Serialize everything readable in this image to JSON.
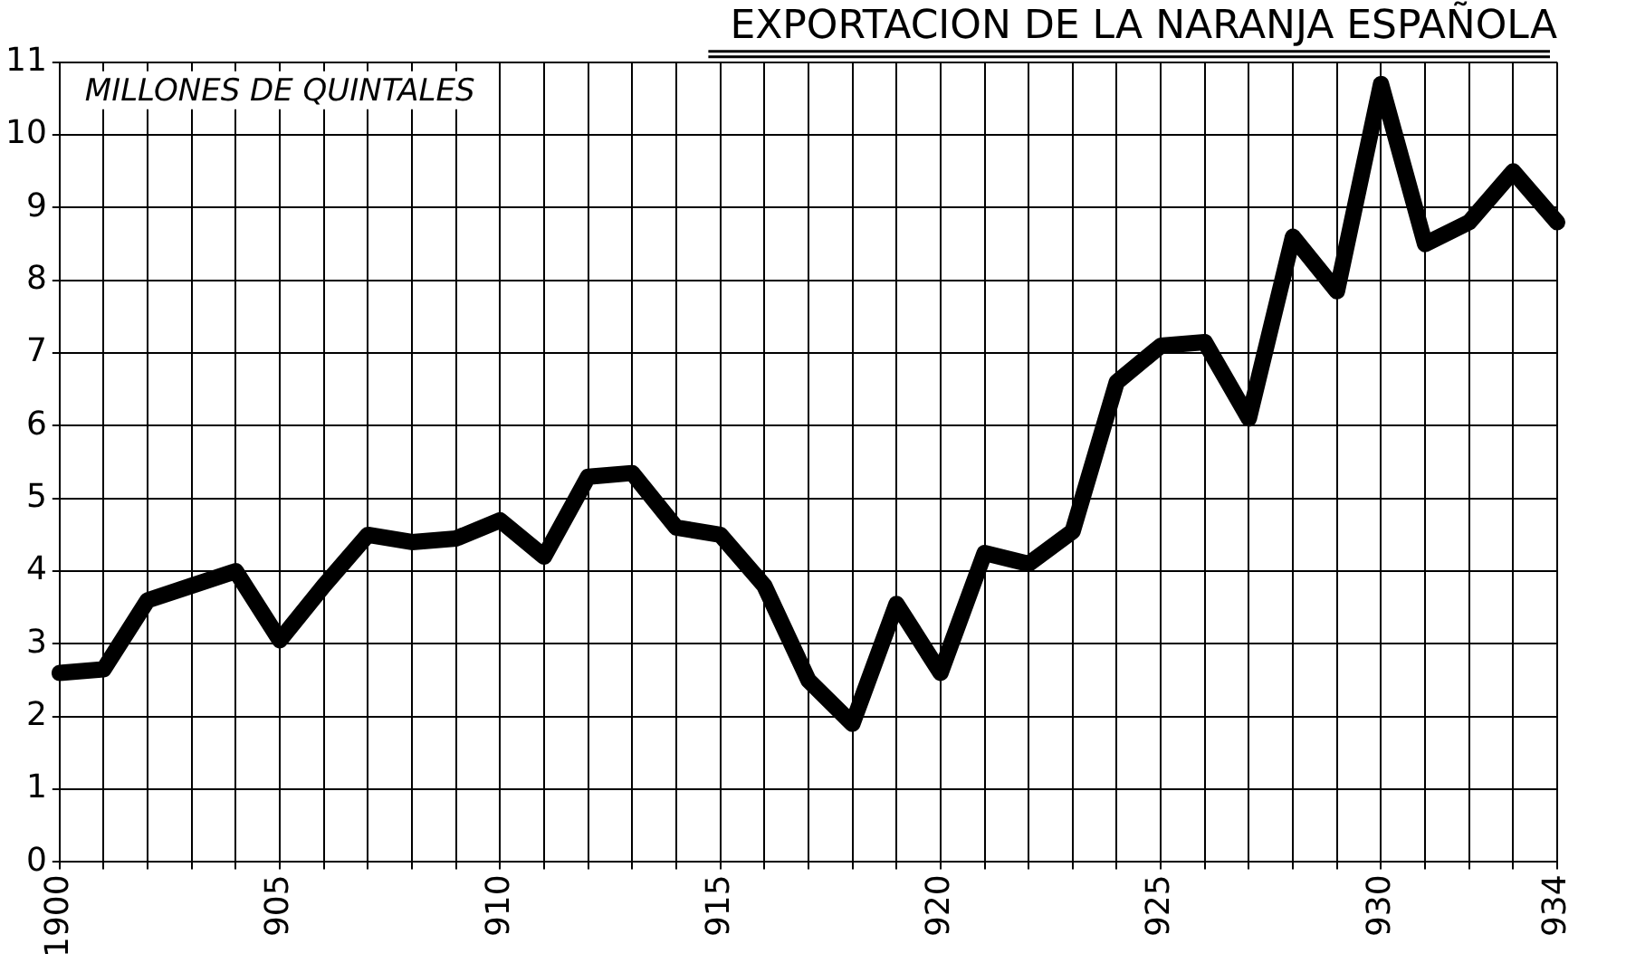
{
  "chart_data": {
    "type": "line",
    "title": "EXPORTACION DE LA NARANJA ESPAÑOLA",
    "annotations": [
      "MILLONES DE QUINTALES"
    ],
    "categories": [
      "1900",
      null,
      null,
      null,
      null,
      "905",
      null,
      null,
      null,
      null,
      "910",
      null,
      null,
      null,
      null,
      "915",
      null,
      null,
      null,
      null,
      "920",
      null,
      null,
      null,
      null,
      "925",
      null,
      null,
      null,
      null,
      "930",
      null,
      null,
      null,
      "934"
    ],
    "series": [
      {
        "color": "#000000",
        "values": [
          2.6,
          2.65,
          3.6,
          3.8,
          4.0,
          3.05,
          3.8,
          4.5,
          4.4,
          4.45,
          4.7,
          4.2,
          5.3,
          5.35,
          4.6,
          4.5,
          3.8,
          2.5,
          1.9,
          3.55,
          2.6,
          4.25,
          4.1,
          4.55,
          6.6,
          7.1,
          7.15,
          6.1,
          8.6,
          7.85,
          10.7,
          8.5,
          8.8,
          9.5,
          8.8
        ]
      }
    ],
    "ylim": [
      0,
      11
    ],
    "yticks": [
      0,
      1,
      2,
      3,
      4,
      5,
      6,
      7,
      8,
      9,
      10,
      11
    ],
    "grid": true,
    "marker": "none",
    "line_style": "solid"
  }
}
